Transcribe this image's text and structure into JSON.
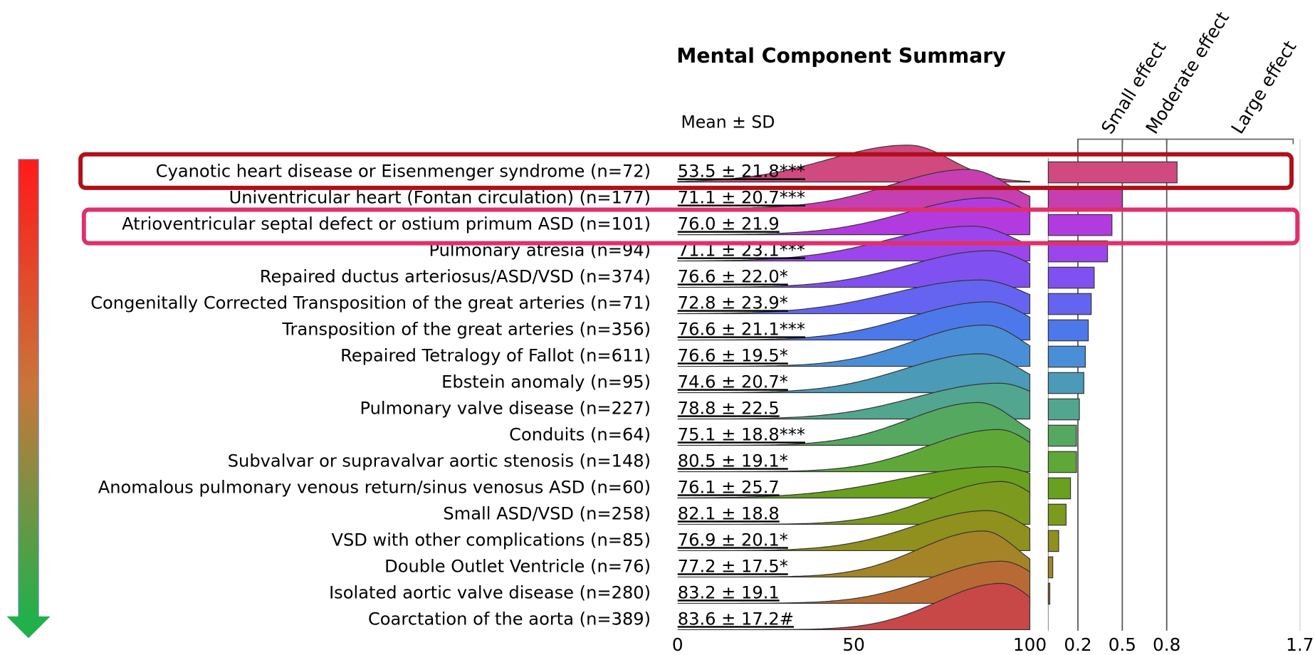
{
  "chart_data": {
    "type": "ridgeline",
    "title": "Mental Component Summary",
    "stat_header": "Mean ± SD",
    "xlim": [
      0,
      100
    ],
    "xticks": [
      0,
      50,
      100
    ],
    "effect_xlim": [
      0,
      1.7
    ],
    "effect_xticks": [
      0.2,
      0.5,
      0.8,
      1.7
    ],
    "effect_labels": [
      "Small effect",
      "Moderate effect",
      "Large effect"
    ],
    "rows": [
      {
        "label": "Cyanotic heart disease or Eisenmenger syndrome (n=72)",
        "mean": 53.5,
        "sd": 21.8,
        "stat_label": "53.5 ± 21.8***",
        "effect": 0.87,
        "color": "#d04a80"
      },
      {
        "label": "Univentricular heart (Fontan circulation) (n=177)",
        "mean": 71.1,
        "sd": 20.7,
        "stat_label": "71.1 ± 20.7***",
        "effect": 0.5,
        "color": "#c63fb0"
      },
      {
        "label": "Atrioventricular septal defect or ostium primum ASD (n=101)",
        "mean": 76.0,
        "sd": 21.9,
        "stat_label": "76.0 ± 21.9",
        "effect": 0.43,
        "color": "#b23be0"
      },
      {
        "label": "Pulmonary atresia (n=94)",
        "mean": 71.1,
        "sd": 23.1,
        "stat_label": "71.1 ± 23.1***",
        "effect": 0.4,
        "color": "#9b45ec"
      },
      {
        "label": "Repaired ductus arteriosus/ASD/VSD (n=374)",
        "mean": 76.6,
        "sd": 22.0,
        "stat_label": "76.6 ± 22.0*",
        "effect": 0.31,
        "color": "#8051f0"
      },
      {
        "label": "Congenitally Corrected Transposition of the great arteries (n=71)",
        "mean": 72.8,
        "sd": 23.9,
        "stat_label": "72.8 ± 23.9*",
        "effect": 0.29,
        "color": "#6464f0"
      },
      {
        "label": "Transposition of the great arteries (n=356)",
        "mean": 76.6,
        "sd": 21.1,
        "stat_label": "76.6 ± 21.1***",
        "effect": 0.27,
        "color": "#4d78ea"
      },
      {
        "label": "Repaired Tetralogy of Fallot (n=611)",
        "mean": 76.6,
        "sd": 19.5,
        "stat_label": "76.6 ± 19.5*",
        "effect": 0.25,
        "color": "#4a8ed8"
      },
      {
        "label": "Ebstein anomaly (n=95)",
        "mean": 74.6,
        "sd": 20.7,
        "stat_label": "74.6 ± 20.7*",
        "effect": 0.24,
        "color": "#4b9ab8"
      },
      {
        "label": "Pulmonary valve disease (n=227)",
        "mean": 78.8,
        "sd": 22.5,
        "stat_label": "78.8 ± 22.5",
        "effect": 0.21,
        "color": "#52a58e"
      },
      {
        "label": "Conduits (n=64)",
        "mean": 75.1,
        "sd": 18.8,
        "stat_label": "75.1 ± 18.8***",
        "effect": 0.19,
        "color": "#55a860"
      },
      {
        "label": "Subvalvar or supravalvar aortic stenosis (n=148)",
        "mean": 80.5,
        "sd": 19.1,
        "stat_label": "80.5 ± 19.1*",
        "effect": 0.19,
        "color": "#5fa838"
      },
      {
        "label": "Anomalous pulmonary venous return/sinus venosus ASD (n=60)",
        "mean": 76.1,
        "sd": 25.7,
        "stat_label": "76.1 ± 25.7",
        "effect": 0.15,
        "color": "#6aa020"
      },
      {
        "label": "Small ASD/VSD (n=258)",
        "mean": 82.1,
        "sd": 18.8,
        "stat_label": "82.1 ± 18.8",
        "effect": 0.12,
        "color": "#7c9a1e"
      },
      {
        "label": "VSD with other complications (n=85)",
        "mean": 76.9,
        "sd": 20.1,
        "stat_label": "76.9 ± 20.1*",
        "effect": 0.07,
        "color": "#8f901e"
      },
      {
        "label": "Double Outlet Ventricle (n=76)",
        "mean": 77.2,
        "sd": 17.5,
        "stat_label": "77.2 ± 17.5*",
        "effect": 0.03,
        "color": "#a58428"
      },
      {
        "label": "Isolated aortic valve disease (n=280)",
        "mean": 83.2,
        "sd": 19.1,
        "stat_label": "83.2 ± 19.1",
        "effect": 0.01,
        "color": "#b86a34"
      },
      {
        "label": "Coarctation of the aorta (n=389)",
        "mean": 83.6,
        "sd": 17.2,
        "stat_label": "83.6 ± 17.2#",
        "effect": 0,
        "color": "#c84848"
      }
    ]
  }
}
